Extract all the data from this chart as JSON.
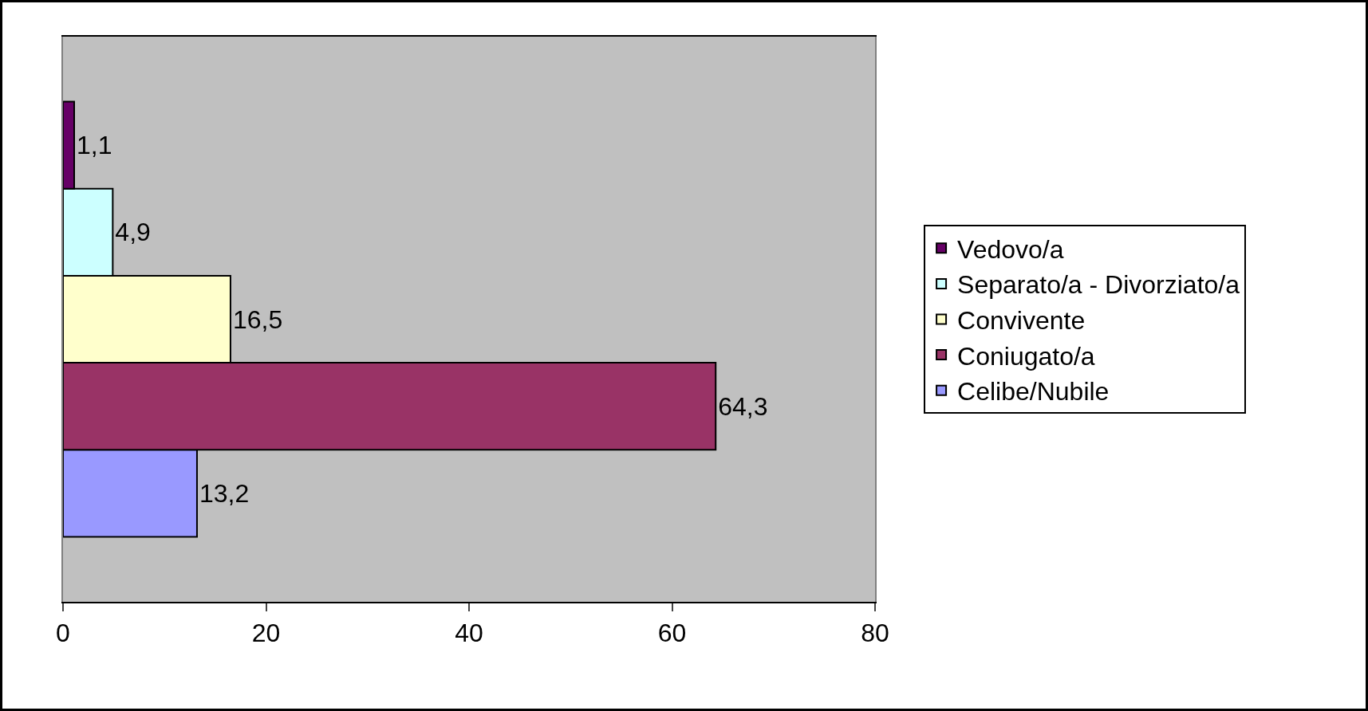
{
  "chart_data": {
    "type": "bar",
    "orientation": "horizontal",
    "categories": [
      null
    ],
    "series": [
      {
        "name": "Celibe/Nubile",
        "color": "#9999ff",
        "values": [
          13.2
        ],
        "value_labels": [
          "13,2"
        ]
      },
      {
        "name": "Coniugato/a",
        "color": "#993366",
        "values": [
          64.3
        ],
        "value_labels": [
          "64,3"
        ]
      },
      {
        "name": "Convivente",
        "color": "#ffffcc",
        "values": [
          16.5
        ],
        "value_labels": [
          "16,5"
        ]
      },
      {
        "name": "Separato/a - Divorziato/a",
        "color": "#ccffff",
        "values": [
          4.9
        ],
        "value_labels": [
          "4,9"
        ]
      },
      {
        "name": "Vedovo/a",
        "color": "#660066",
        "values": [
          1.1
        ],
        "value_labels": [
          "1,1"
        ]
      }
    ],
    "xlim": [
      0,
      80
    ],
    "xticks": [
      0,
      20,
      40,
      60,
      80
    ],
    "legend": "right"
  }
}
